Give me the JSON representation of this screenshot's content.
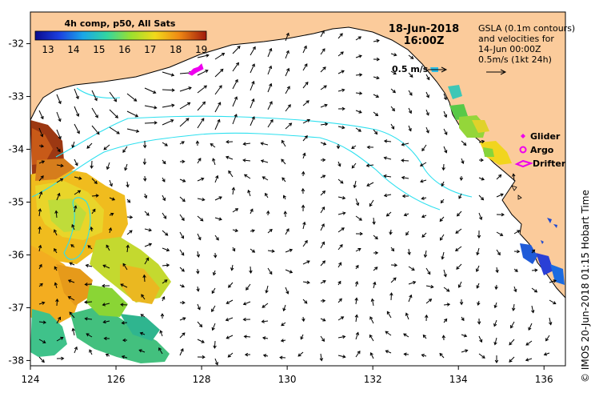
{
  "map": {
    "date": "18-Jun-2018",
    "time": "16:00Z",
    "legend": {
      "title": "4h comp, p50, All Sats",
      "ticks": [
        "13",
        "14",
        "15",
        "16",
        "17",
        "18",
        "19"
      ],
      "min": 12.5,
      "max": 19.2
    },
    "note": {
      "line1": "GSLA (0.1m contours)",
      "line2": "and velocities for",
      "line3": "14-Jun 00:00Z",
      "line4": "0.5m/s (1kt 24h)"
    },
    "scale_label": "0.5 m/s",
    "platforms": [
      {
        "label": "Glider",
        "icon": "diamond-icon"
      },
      {
        "label": "Argo",
        "icon": "circle-icon"
      },
      {
        "label": "Drifter",
        "icon": "drifter-icon"
      }
    ],
    "x_ticks": [
      "124",
      "126",
      "128",
      "130",
      "132",
      "134",
      "136"
    ],
    "y_ticks": [
      "-32",
      "-33",
      "-34",
      "-35",
      "-36",
      "-37",
      "-38"
    ],
    "credit": "© IMOS 20-Jun-2018 01:15 Hobart Time",
    "colors": {
      "land": "#fbcb9b",
      "contour": "#2ee0ef",
      "marker": "#ee00ee",
      "frame": "#000000"
    }
  }
}
